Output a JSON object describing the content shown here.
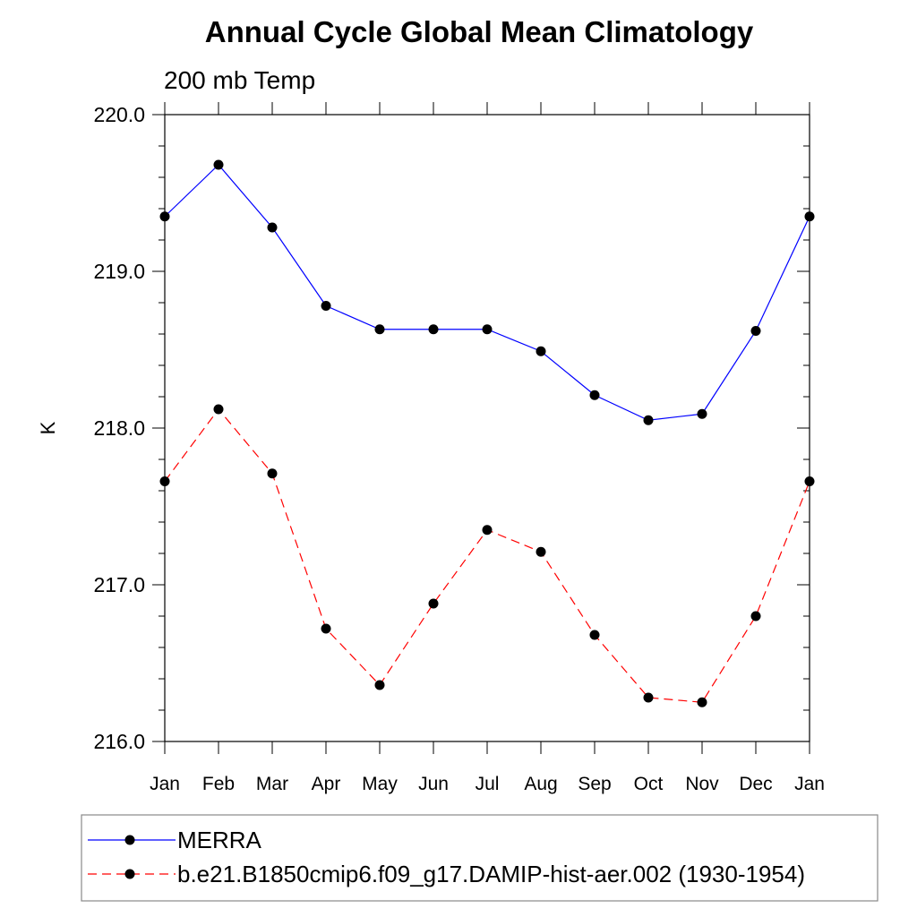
{
  "chart_data": {
    "type": "line",
    "title": "Annual Cycle Global Mean Climatology",
    "subtitle": "200 mb Temp",
    "xlabel": "",
    "ylabel": "K",
    "ylim": [
      216.0,
      220.0
    ],
    "yticks": [
      "216.0",
      "217.0",
      "218.0",
      "219.0",
      "220.0"
    ],
    "categories": [
      "Jan",
      "Feb",
      "Mar",
      "Apr",
      "May",
      "Jun",
      "Jul",
      "Aug",
      "Sep",
      "Oct",
      "Nov",
      "Dec",
      "Jan"
    ],
    "grid": false,
    "legend_position": "bottom",
    "series": [
      {
        "name": "MERRA",
        "color": "#0000ff",
        "dashed": false,
        "values": [
          219.35,
          219.68,
          219.28,
          218.78,
          218.63,
          218.63,
          218.63,
          218.49,
          218.21,
          218.05,
          218.09,
          218.62,
          219.35
        ]
      },
      {
        "name": "b.e21.B1850cmip6.f09_g17.DAMIP-hist-aer.002 (1930-1954)",
        "color": "#ff0000",
        "dashed": true,
        "values": [
          217.66,
          218.12,
          217.71,
          216.72,
          216.36,
          216.88,
          217.35,
          217.21,
          216.68,
          216.28,
          216.25,
          216.8,
          217.66
        ]
      }
    ]
  }
}
